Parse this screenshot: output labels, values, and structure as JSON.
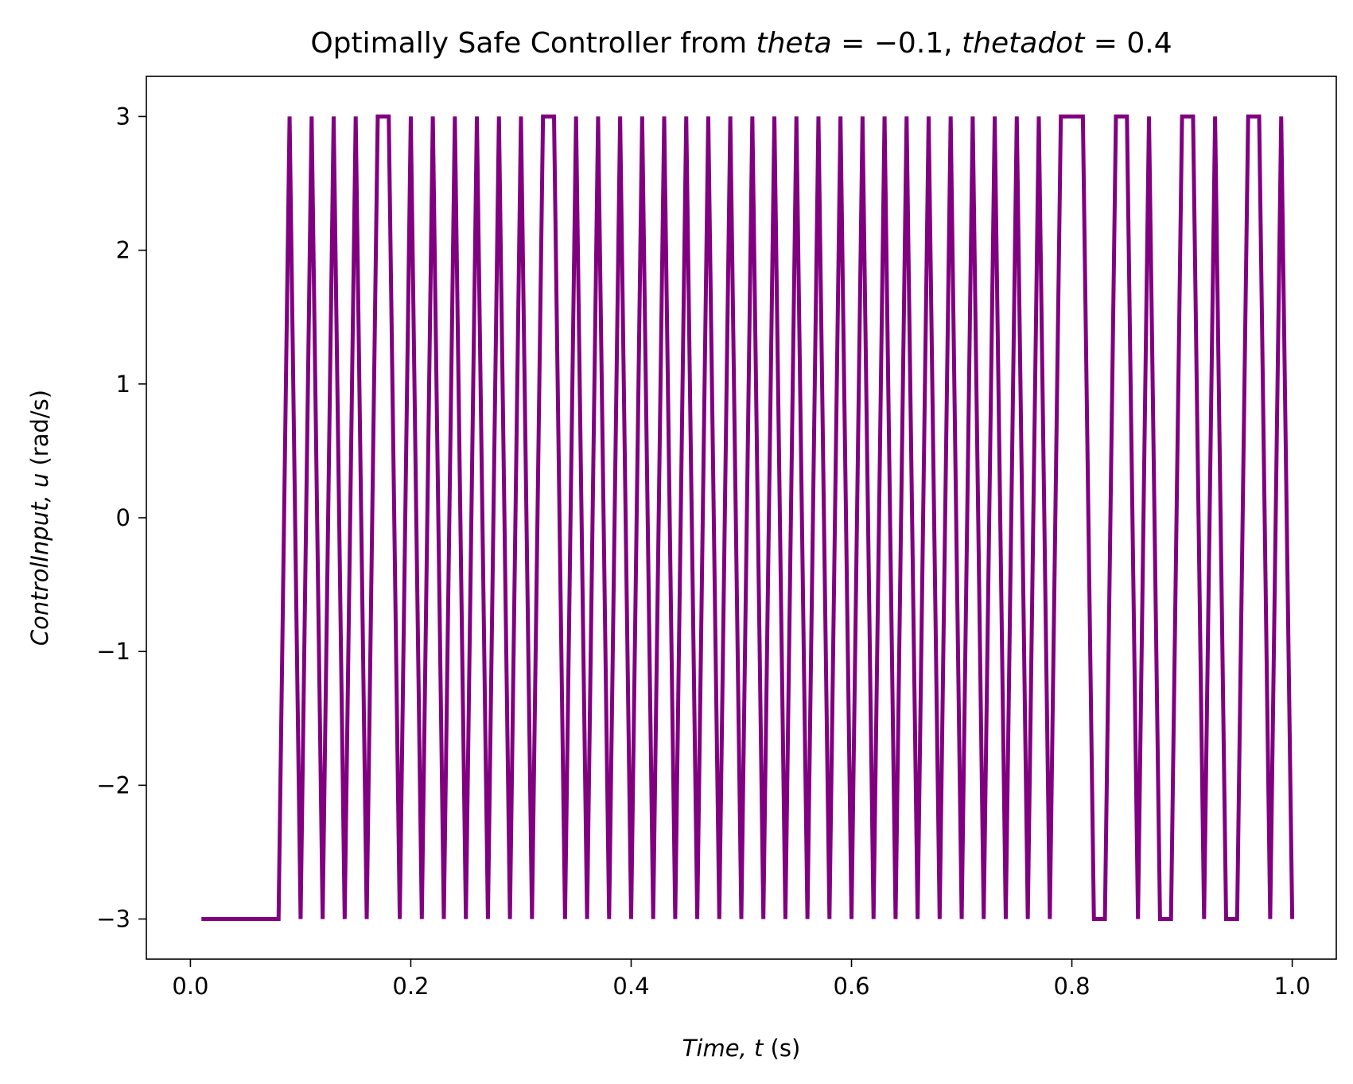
{
  "chart_data": {
    "type": "line",
    "title": {
      "prefix": "Optimally Safe Controller from ",
      "var1": "theta",
      "eq1": " = −0.1, ",
      "var2": "thetadot",
      "eq2": " = 0.4"
    },
    "xlabel": {
      "italic": "Time, t",
      "plain": " (s)"
    },
    "ylabel": {
      "italic": "ControlInput, u",
      "plain": " (rad/s)"
    },
    "xlim": [
      -0.04,
      1.04
    ],
    "ylim": [
      -3.3,
      3.3
    ],
    "xticks": [
      0.0,
      0.2,
      0.4,
      0.6,
      0.8,
      1.0
    ],
    "xtick_labels": [
      "0.0",
      "0.2",
      "0.4",
      "0.6",
      "0.8",
      "1.0"
    ],
    "yticks": [
      -3,
      -2,
      -1,
      0,
      1,
      2,
      3
    ],
    "ytick_labels": [
      "−3",
      "−2",
      "−1",
      "0",
      "1",
      "2",
      "3"
    ],
    "grid": false,
    "series": [
      {
        "color": "#800080",
        "x": [
          0.01,
          0.08,
          0.09,
          0.1,
          0.11,
          0.12,
          0.13,
          0.14,
          0.15,
          0.16,
          0.17,
          0.18,
          0.19,
          0.2,
          0.21,
          0.22,
          0.23,
          0.24,
          0.25,
          0.26,
          0.27,
          0.28,
          0.29,
          0.3,
          0.31,
          0.32,
          0.33,
          0.34,
          0.35,
          0.36,
          0.37,
          0.38,
          0.39,
          0.4,
          0.41,
          0.42,
          0.43,
          0.44,
          0.45,
          0.46,
          0.47,
          0.48,
          0.49,
          0.5,
          0.51,
          0.52,
          0.53,
          0.54,
          0.55,
          0.56,
          0.57,
          0.58,
          0.59,
          0.6,
          0.61,
          0.62,
          0.63,
          0.64,
          0.65,
          0.66,
          0.67,
          0.68,
          0.69,
          0.7,
          0.71,
          0.72,
          0.73,
          0.74,
          0.75,
          0.76,
          0.77,
          0.78,
          0.79,
          0.8,
          0.81,
          0.82,
          0.83,
          0.84,
          0.85,
          0.86,
          0.87,
          0.88,
          0.89,
          0.9,
          0.91,
          0.92,
          0.93,
          0.94,
          0.95,
          0.96,
          0.97,
          0.98,
          0.99,
          1.0
        ],
        "y": [
          -3,
          -3,
          3,
          -3,
          3,
          -3,
          3,
          -3,
          3,
          -3,
          3,
          3,
          -3,
          3,
          -3,
          3,
          -3,
          3,
          -3,
          3,
          -3,
          3,
          -3,
          3,
          -3,
          3,
          3,
          -3,
          3,
          -3,
          3,
          -3,
          3,
          -3,
          3,
          -3,
          3,
          -3,
          3,
          -3,
          3,
          -3,
          3,
          -3,
          3,
          -3,
          3,
          -3,
          3,
          -3,
          3,
          -3,
          3,
          -3,
          3,
          -3,
          3,
          -3,
          3,
          -3,
          3,
          -3,
          3,
          -3,
          3,
          -3,
          3,
          -3,
          3,
          -3,
          3,
          -3,
          3,
          3,
          3,
          -3,
          -3,
          3,
          3,
          -3,
          3,
          -3,
          -3,
          3,
          3,
          -3,
          3,
          -3,
          -3,
          3,
          3,
          -3,
          3,
          -3
        ]
      }
    ]
  }
}
